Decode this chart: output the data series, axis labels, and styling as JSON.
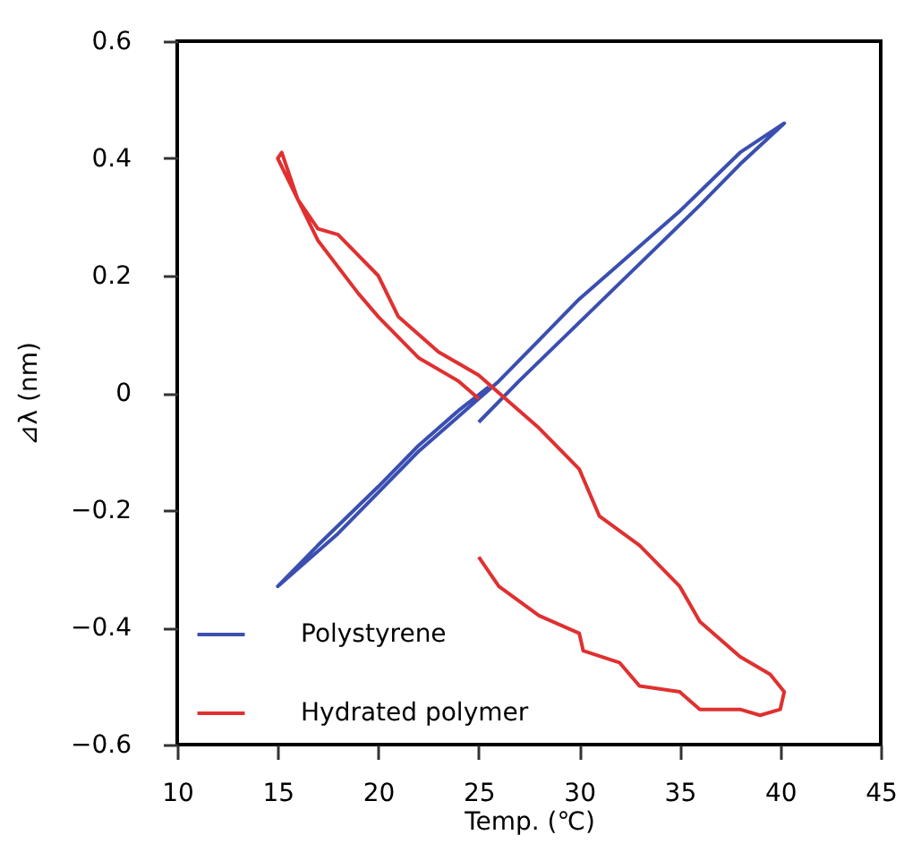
{
  "chart_data": {
    "type": "line",
    "xlabel": "Temp. (℃)",
    "ylabel": "⊿λ (nm)",
    "xlim": [
      10,
      45
    ],
    "xticks": [
      10,
      15,
      20,
      25,
      30,
      35,
      40,
      45
    ],
    "ylim": [
      -0.6,
      0.6
    ],
    "yticks": [
      -0.6,
      -0.4,
      -0.2,
      0,
      0.2,
      0.4,
      0.6
    ],
    "grid": false,
    "legend": "bottom left",
    "marker": "none",
    "line_style": "solid",
    "series": [
      {
        "name": "Polystyrene",
        "color": "#3a4fb0",
        "x": [
          25,
          27,
          30,
          33,
          36,
          38,
          40.2,
          38,
          35,
          32,
          30,
          28,
          26,
          25,
          22,
          20,
          18,
          15,
          17,
          20,
          22,
          24,
          25.5
        ],
        "values": [
          -0.05,
          0.02,
          0.12,
          0.22,
          0.32,
          0.39,
          0.46,
          0.41,
          0.31,
          0.22,
          0.16,
          0.09,
          0.02,
          -0.01,
          -0.1,
          -0.17,
          -0.24,
          -0.33,
          -0.26,
          -0.16,
          -0.09,
          -0.03,
          0.01
        ]
      },
      {
        "name": "Hydrated polymer",
        "color": "#e03030",
        "x": [
          25,
          26,
          28,
          30,
          30.2,
          32,
          33,
          35,
          36,
          38,
          39,
          40,
          40.2,
          39.5,
          38,
          36,
          35,
          33,
          31,
          30,
          28,
          26,
          25,
          23,
          21,
          20,
          18,
          17,
          16,
          15,
          15.2,
          16,
          17,
          19,
          20,
          22,
          24,
          25
        ],
        "values": [
          -0.28,
          -0.33,
          -0.38,
          -0.41,
          -0.44,
          -0.46,
          -0.5,
          -0.51,
          -0.54,
          -0.54,
          -0.55,
          -0.54,
          -0.51,
          -0.48,
          -0.45,
          -0.39,
          -0.33,
          -0.26,
          -0.21,
          -0.13,
          -0.06,
          0.0,
          0.03,
          0.07,
          0.13,
          0.2,
          0.27,
          0.28,
          0.33,
          0.4,
          0.41,
          0.33,
          0.26,
          0.17,
          0.13,
          0.06,
          0.02,
          -0.01
        ]
      }
    ]
  }
}
